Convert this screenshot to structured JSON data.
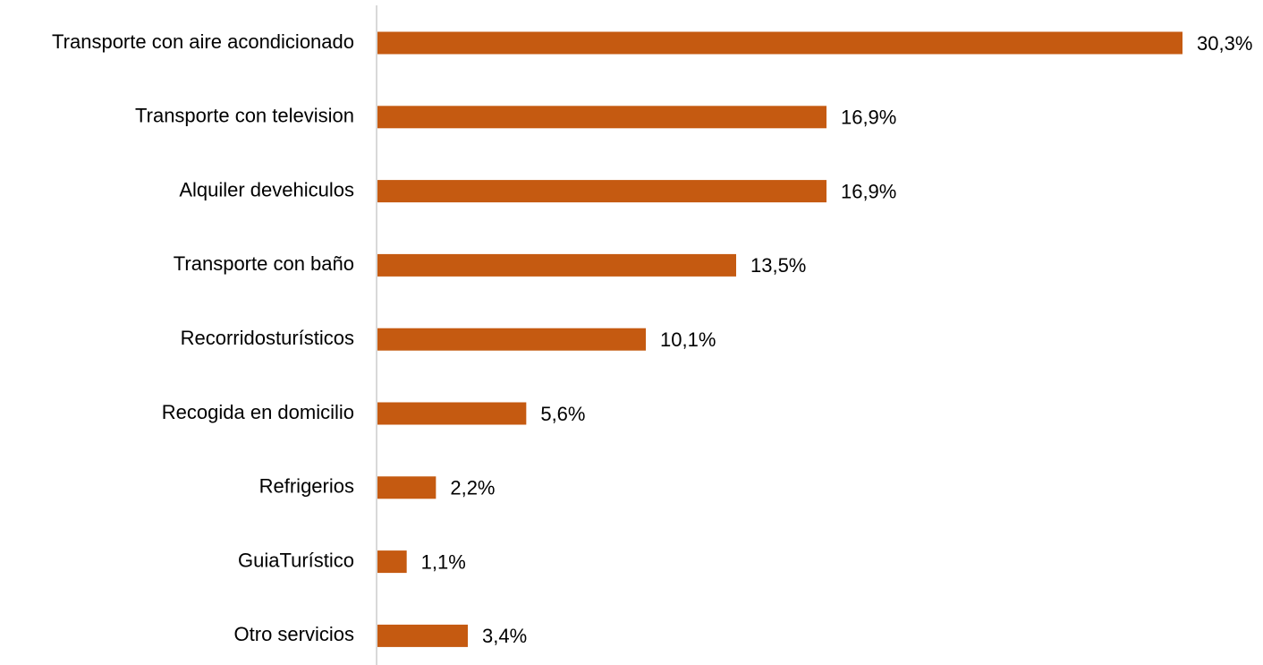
{
  "chart_data": {
    "type": "bar",
    "orientation": "horizontal",
    "categories": [
      "Transporte con aire acondicionado",
      "Transporte con television",
      "Alquiler devehiculos",
      "Transporte con baño",
      "Recorridosturísticos",
      "Recogida en domicilio",
      "Refrigerios",
      "GuiaTurístico",
      "Otro servicios"
    ],
    "values": [
      30.3,
      16.9,
      16.9,
      13.5,
      10.1,
      5.6,
      2.2,
      1.1,
      3.4
    ],
    "data_labels": [
      "30,3%",
      "16,9%",
      "16,9%",
      "13,5%",
      "10,1%",
      "5,6%",
      "2,2%",
      "1,1%",
      "3,4%"
    ],
    "title": "",
    "xlabel": "",
    "ylabel": "",
    "xlim": [
      0,
      30.3
    ],
    "grid": false,
    "legend": "none",
    "bar_color": "#C55A11",
    "axis_color": "#D9D9D9"
  }
}
